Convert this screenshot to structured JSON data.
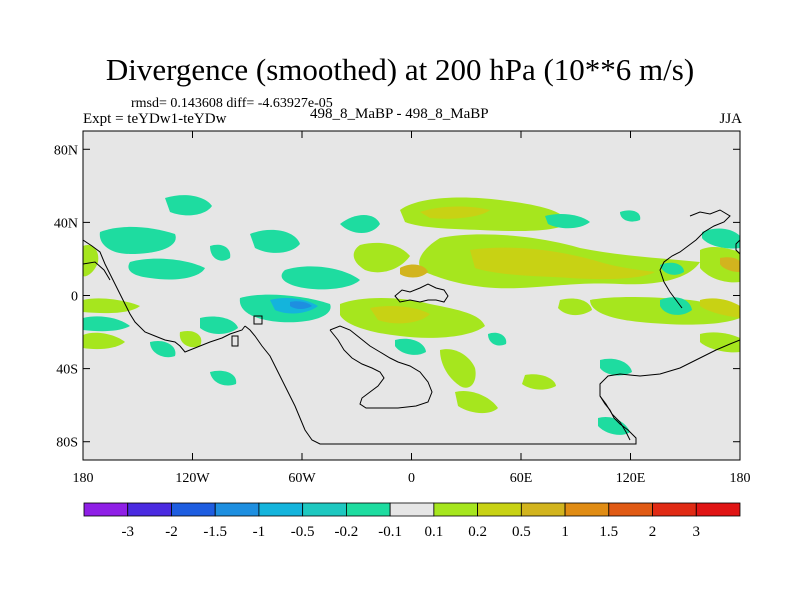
{
  "title": "Divergence (smoothed) at 200 hPa (10**6 m/s)",
  "stats_line": "rmsd= 0.143608 diff= -4.63927e-05",
  "experiment": "Expt = teYDw1-teYDw",
  "case_label": "498_8_MaBP - 498_8_MaBP",
  "season": "JJA",
  "colors": {
    "background": "#e6e6e6",
    "coastline": "#000000"
  },
  "axes": {
    "lat_ticks": [
      {
        "value": 80,
        "label": "80N"
      },
      {
        "value": 40,
        "label": "40N"
      },
      {
        "value": 0,
        "label": "0"
      },
      {
        "value": -40,
        "label": "40S"
      },
      {
        "value": -80,
        "label": "80S"
      }
    ],
    "lon_ticks": [
      {
        "value": -180,
        "label": "180"
      },
      {
        "value": -120,
        "label": "120W"
      },
      {
        "value": -60,
        "label": "60W"
      },
      {
        "value": 0,
        "label": "0"
      },
      {
        "value": 60,
        "label": "60E"
      },
      {
        "value": 120,
        "label": "120E"
      },
      {
        "value": 180,
        "label": "180"
      }
    ]
  },
  "colorbar": {
    "colors": [
      "#8f1fe6",
      "#4a2ae0",
      "#1e5de0",
      "#1e8fe0",
      "#14b4dc",
      "#1ec8c0",
      "#1edca0",
      "#e6e6e6",
      "#a6e61e",
      "#c8d214",
      "#d2b41e",
      "#e08c14",
      "#e05a14",
      "#e02a14",
      "#e01414"
    ],
    "labels": [
      "-3",
      "-2",
      "-1.5",
      "-1",
      "-0.5",
      "-0.2",
      "-0.1",
      "0.1",
      "0.2",
      "0.5",
      "1",
      "1.5",
      "2",
      "3"
    ]
  }
}
